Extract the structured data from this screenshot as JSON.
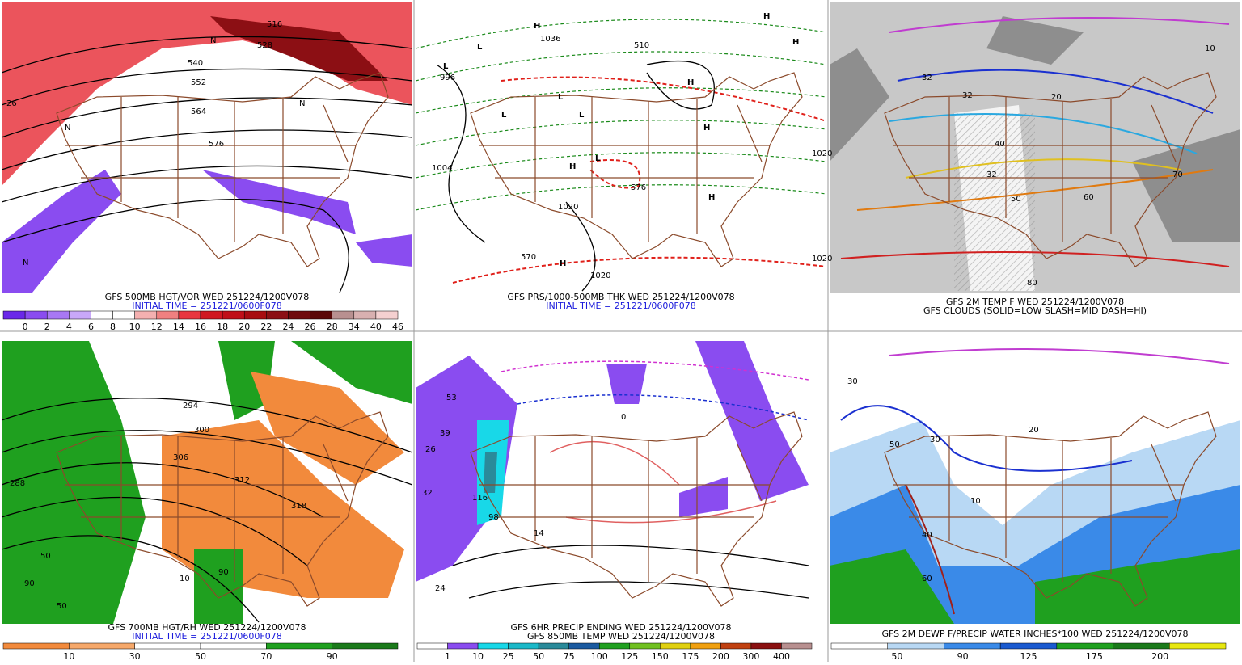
{
  "panels": [
    {
      "captions": [
        "GFS 500MB HGT/VOR WED 251224/1200V078",
        "INITIAL TIME = 251221/0600F078"
      ],
      "colorbar": [
        "0",
        "2",
        "4",
        "6",
        "8",
        "10",
        "12",
        "14",
        "16",
        "18",
        "20",
        "22",
        "24",
        "26",
        "28",
        "34",
        "40",
        "46"
      ],
      "map_labels": [
        "516",
        "528",
        "540",
        "552",
        "564",
        "576",
        "N",
        "N",
        "N",
        "N",
        "26"
      ]
    },
    {
      "captions": [
        "GFS PRS/1000-500MB THK WED 251224/1200V078",
        "INITIAL TIME = 251221/0600F078"
      ],
      "colorbar": [],
      "map_labels": [
        "L",
        "L",
        "L",
        "L",
        "L",
        "L",
        "H",
        "H",
        "H",
        "H",
        "H",
        "H",
        "H",
        "H",
        "996",
        "1004",
        "1020",
        "1020",
        "1020",
        "1020",
        "1036",
        "570",
        "510",
        "576"
      ]
    },
    {
      "captions": [
        "GFS 2M TEMP F WED 251224/1200V078",
        "GFS CLOUDS (SOLID=LOW SLASH=MID DASH=HI)"
      ],
      "colorbar": [],
      "map_labels": [
        "32",
        "32",
        "32",
        "40",
        "50",
        "60",
        "70",
        "80",
        "20",
        "10"
      ]
    },
    {
      "captions": [
        "GFS 700MB HGT/RH WED 251224/1200V078",
        "INITIAL TIME = 251221/0600F078"
      ],
      "colorbar": [
        "10",
        "30",
        "50",
        "70",
        "90"
      ],
      "map_labels": [
        "300",
        "306",
        "312",
        "318",
        "288",
        "294",
        "10",
        "50",
        "90",
        "50",
        "90"
      ]
    },
    {
      "captions": [
        "GFS 6HR PRECIP ENDING WED 251224/1200V078",
        "GFS 850MB TEMP WED 251224/1200V078"
      ],
      "colorbar": [
        "1",
        "10",
        "25",
        "50",
        "75",
        "100",
        "125",
        "150",
        "175",
        "200",
        "300",
        "400"
      ],
      "map_labels": [
        "53",
        "39",
        "26",
        "32",
        "24",
        "116",
        "98",
        "14",
        "0"
      ]
    },
    {
      "captions": [
        "GFS 2M DEWP F/PRECIP WATER INCHES*100 WED 251224/1200V078"
      ],
      "colorbar": [
        "50",
        "90",
        "125",
        "175",
        "200"
      ],
      "map_labels": [
        "30",
        "30",
        "20",
        "50",
        "60",
        "10",
        "40"
      ]
    }
  ]
}
